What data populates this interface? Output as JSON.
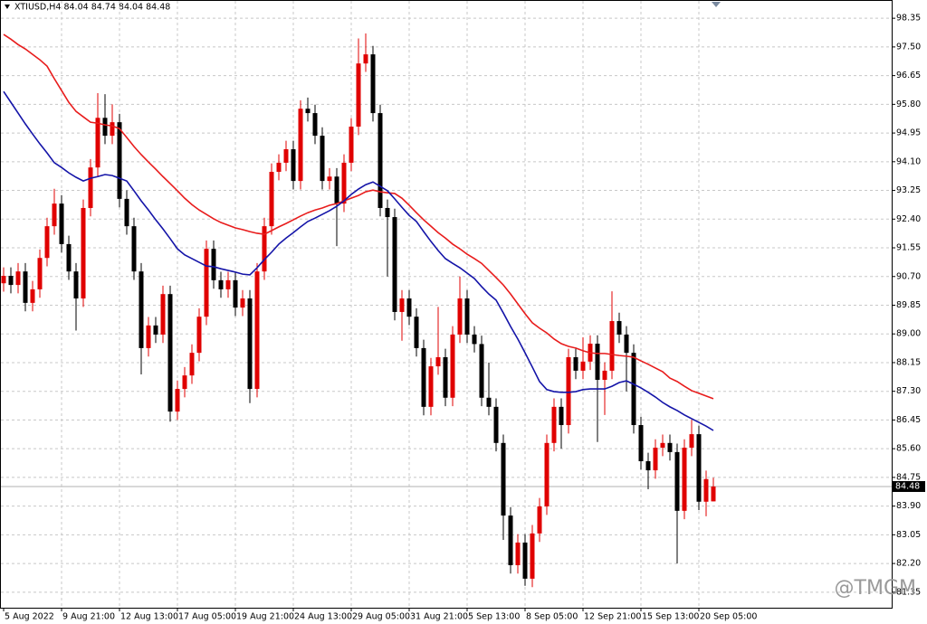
{
  "chart_data": {
    "type": "candlestick",
    "title": "XTIUSD,H4  84.04 84.74 84.04 84.48",
    "watermark": "@TMGM",
    "up_color": "#e00000",
    "down_color": "#000000",
    "grid": true,
    "ylim": [
      80.89,
      98.89
    ],
    "yticks": [
      98.35,
      {
        "value": 97.5,
        "label": "97.50"
      },
      96.65,
      {
        "value": 95.8,
        "label": "95.80"
      },
      94.95,
      {
        "value": 94.1,
        "label": "94.10"
      },
      93.25,
      {
        "value": 92.4,
        "label": "92.40"
      },
      91.55,
      {
        "value": 90.7,
        "label": "90.70"
      },
      89.85,
      {
        "value": 89,
        "label": "89.00"
      },
      88.15,
      {
        "value": 87.3,
        "label": "87.30"
      },
      86.45,
      {
        "value": 85.6,
        "label": "85.60"
      },
      84.75,
      {
        "value": 83.9,
        "label": "83.90"
      },
      83.05,
      {
        "value": 82.2,
        "label": "82.20"
      },
      81.35
    ],
    "last_price": 84.48,
    "categories": [
      "5 Aug 2022",
      null,
      null,
      null,
      null,
      null,
      null,
      null,
      "9 Aug 21:00",
      null,
      null,
      null,
      null,
      null,
      null,
      null,
      "12 Aug 13:00",
      null,
      null,
      null,
      null,
      null,
      null,
      null,
      "17 Aug 05:00",
      null,
      null,
      null,
      null,
      null,
      null,
      null,
      "19 Aug 21:00",
      null,
      null,
      null,
      null,
      null,
      null,
      null,
      "24 Aug 13:00",
      null,
      null,
      null,
      null,
      null,
      null,
      null,
      "29 Aug 05:00",
      null,
      null,
      null,
      null,
      null,
      null,
      null,
      "31 Aug 21:00",
      null,
      null,
      null,
      null,
      null,
      null,
      null,
      "5 Sep 13:00",
      null,
      null,
      null,
      null,
      null,
      null,
      null,
      "8 Sep 05:00",
      null,
      null,
      null,
      null,
      null,
      null,
      null,
      "12 Sep 21:00",
      null,
      null,
      null,
      null,
      null,
      null,
      null,
      "15 Sep 13:00",
      null,
      null,
      null,
      null,
      null,
      null,
      null,
      "20 Sep 05:00",
      null,
      null
    ],
    "open": [
      90.5,
      90.72,
      90.45,
      90.85,
      89.92,
      90.32,
      91.25,
      92.19,
      92.86,
      91.66,
      90.85,
      90.05,
      92.73,
      93.93,
      95.4,
      94.87,
      95.27,
      93.0,
      92.19,
      90.85,
      88.58,
      89.25,
      88.98,
      90.18,
      86.7,
      87.37,
      87.77,
      88.44,
      89.51,
      91.52,
      90.59,
      90.32,
      90.59,
      89.78,
      90.05,
      87.37,
      90.85,
      92.19,
      93.8,
      94.07,
      94.47,
      93.53,
      95.67,
      95.54,
      94.87,
      93.53,
      93.66,
      92.86,
      94.07,
      95.14,
      97.01,
      97.28,
      95.54,
      92.73,
      92.46,
      89.65,
      90.05,
      89.51,
      88.58,
      86.84,
      88.04,
      88.31,
      87.11,
      88.98,
      90.05,
      88.98,
      88.7,
      87.11,
      86.84,
      85.77,
      83.62,
      82.15,
      82.82,
      81.75,
      83.09,
      83.89,
      85.77,
      86.84,
      86.3,
      88.31,
      87.91,
      88.18,
      88.71,
      87.64,
      87.91,
      89.38,
      88.98,
      88.44,
      86.3,
      85.23,
      84.96,
      85.63,
      85.77,
      85.5,
      83.76,
      85.63,
      86.03,
      84.03,
      84.04
    ],
    "high": [
      90.97,
      90.97,
      91.1,
      91.1,
      90.57,
      91.5,
      92.44,
      93.3,
      93.11,
      91.91,
      91.1,
      92.98,
      94.18,
      96.13,
      96.1,
      95.8,
      95.52,
      93.25,
      92.44,
      91.1,
      89.5,
      89.5,
      90.43,
      90.43,
      87.62,
      88.02,
      88.69,
      89.76,
      91.77,
      91.77,
      90.84,
      90.84,
      90.84,
      90.3,
      90.3,
      91.1,
      92.44,
      94.05,
      94.32,
      94.72,
      94.72,
      95.92,
      96.0,
      95.79,
      95.12,
      93.91,
      93.91,
      94.32,
      95.39,
      97.75,
      97.9,
      97.53,
      95.79,
      92.98,
      92.71,
      90.3,
      90.3,
      89.76,
      88.83,
      88.29,
      89.8,
      88.56,
      89.23,
      90.7,
      90.3,
      89.23,
      88.95,
      88.15,
      87.09,
      86.02,
      83.87,
      83.07,
      83.07,
      83.34,
      84.14,
      86.02,
      87.09,
      87.09,
      88.56,
      88.56,
      88.9,
      88.96,
      88.96,
      88.16,
      90.26,
      89.63,
      89.23,
      88.69,
      86.55,
      85.48,
      85.88,
      86.02,
      86.02,
      85.75,
      85.88,
      86.45,
      86.28,
      84.95,
      84.74
    ],
    "low": [
      90.25,
      90.2,
      90.2,
      89.67,
      89.67,
      90.07,
      91.0,
      91.94,
      91.41,
      90.6,
      89.1,
      89.8,
      92.48,
      93.68,
      94.62,
      94.62,
      92.75,
      91.94,
      90.6,
      87.8,
      88.33,
      88.73,
      88.73,
      86.4,
      86.45,
      87.12,
      87.52,
      88.19,
      89.26,
      90.34,
      90.07,
      90.07,
      89.53,
      89.53,
      86.95,
      87.12,
      90.6,
      91.94,
      93.55,
      93.82,
      93.28,
      93.28,
      95.29,
      94.62,
      93.28,
      93.28,
      91.6,
      92.61,
      93.82,
      94.89,
      96.76,
      95.29,
      92.48,
      90.7,
      89.4,
      88.8,
      89.26,
      88.33,
      86.59,
      86.59,
      87.79,
      86.86,
      86.86,
      88.73,
      88.73,
      88.45,
      86.86,
      86.59,
      85.52,
      82.9,
      81.9,
      81.9,
      81.54,
      81.5,
      82.84,
      83.64,
      85.52,
      85.6,
      86.05,
      87.66,
      87.66,
      87.93,
      85.8,
      86.6,
      87.66,
      88.73,
      87.3,
      86.05,
      84.98,
      84.4,
      84.71,
      85.38,
      85.25,
      82.2,
      83.51,
      85.38,
      83.78,
      83.6,
      84.04
    ],
    "close": [
      90.72,
      90.45,
      90.85,
      89.92,
      90.32,
      91.25,
      92.19,
      92.86,
      91.66,
      90.85,
      90.05,
      92.73,
      93.93,
      95.4,
      94.87,
      95.27,
      93.0,
      92.19,
      90.85,
      88.58,
      89.25,
      88.98,
      90.18,
      86.7,
      87.37,
      87.77,
      88.44,
      89.51,
      91.52,
      90.59,
      90.32,
      90.59,
      89.78,
      90.05,
      87.37,
      90.85,
      92.19,
      93.8,
      94.07,
      94.47,
      93.53,
      95.67,
      95.54,
      94.87,
      93.53,
      93.66,
      92.86,
      94.07,
      95.14,
      97.01,
      97.28,
      95.54,
      92.73,
      92.46,
      89.65,
      90.05,
      89.51,
      88.58,
      86.84,
      88.04,
      88.31,
      87.11,
      88.98,
      90.05,
      88.98,
      88.7,
      87.11,
      86.84,
      85.77,
      83.62,
      82.15,
      82.82,
      81.75,
      83.09,
      83.89,
      85.77,
      86.84,
      86.3,
      88.31,
      87.91,
      88.18,
      88.71,
      87.64,
      87.91,
      89.38,
      88.98,
      88.44,
      86.3,
      85.23,
      84.96,
      85.63,
      85.77,
      85.5,
      83.76,
      85.63,
      86.03,
      84.03,
      84.7,
      84.48
    ],
    "moving_averages": [
      {
        "color": "#e81c1c",
        "values": [
          97.87,
          97.73,
          97.57,
          97.44,
          97.28,
          97.12,
          96.93,
          96.56,
          96.21,
          95.86,
          95.59,
          95.43,
          95.27,
          95.24,
          95.19,
          95.16,
          95.08,
          94.82,
          94.55,
          94.31,
          94.09,
          93.88,
          93.66,
          93.45,
          93.24,
          93.02,
          92.83,
          92.67,
          92.54,
          92.41,
          92.3,
          92.22,
          92.14,
          92.09,
          92.03,
          91.98,
          91.95,
          92.06,
          92.17,
          92.27,
          92.38,
          92.49,
          92.59,
          92.67,
          92.73,
          92.81,
          92.86,
          92.94,
          93.02,
          93.1,
          93.21,
          93.26,
          93.21,
          93.18,
          93.16,
          93.02,
          92.81,
          92.59,
          92.38,
          92.19,
          92.0,
          91.84,
          91.66,
          91.52,
          91.36,
          91.23,
          91.09,
          90.88,
          90.67,
          90.45,
          90.18,
          89.89,
          89.6,
          89.33,
          89.17,
          89.03,
          88.85,
          88.71,
          88.63,
          88.58,
          88.5,
          88.44,
          88.42,
          88.42,
          88.39,
          88.36,
          88.34,
          88.31,
          88.2,
          88.1,
          87.99,
          87.88,
          87.69,
          87.59,
          87.45,
          87.32,
          87.24,
          87.16,
          87.08
        ]
      },
      {
        "color": "#1414a8",
        "values": [
          96.18,
          95.86,
          95.54,
          95.22,
          94.92,
          94.63,
          94.36,
          94.07,
          93.93,
          93.77,
          93.64,
          93.53,
          93.61,
          93.66,
          93.72,
          93.69,
          93.61,
          93.53,
          93.24,
          92.94,
          92.67,
          92.38,
          92.11,
          91.82,
          91.52,
          91.34,
          91.23,
          91.12,
          91.01,
          90.99,
          90.93,
          90.88,
          90.83,
          90.77,
          90.75,
          90.96,
          91.2,
          91.42,
          91.66,
          91.84,
          92.0,
          92.17,
          92.33,
          92.43,
          92.54,
          92.65,
          92.78,
          92.94,
          93.13,
          93.29,
          93.42,
          93.5,
          93.37,
          93.24,
          93.0,
          92.75,
          92.51,
          92.33,
          92.03,
          91.74,
          91.47,
          91.23,
          91.09,
          90.96,
          90.8,
          90.64,
          90.4,
          90.18,
          90.0,
          89.62,
          89.22,
          88.85,
          88.44,
          88.02,
          87.59,
          87.35,
          87.29,
          87.27,
          87.27,
          87.29,
          87.35,
          87.37,
          87.37,
          87.37,
          87.45,
          87.56,
          87.61,
          87.51,
          87.4,
          87.27,
          87.13,
          86.97,
          86.84,
          86.73,
          86.6,
          86.49,
          86.38,
          86.27,
          86.14
        ]
      }
    ]
  }
}
